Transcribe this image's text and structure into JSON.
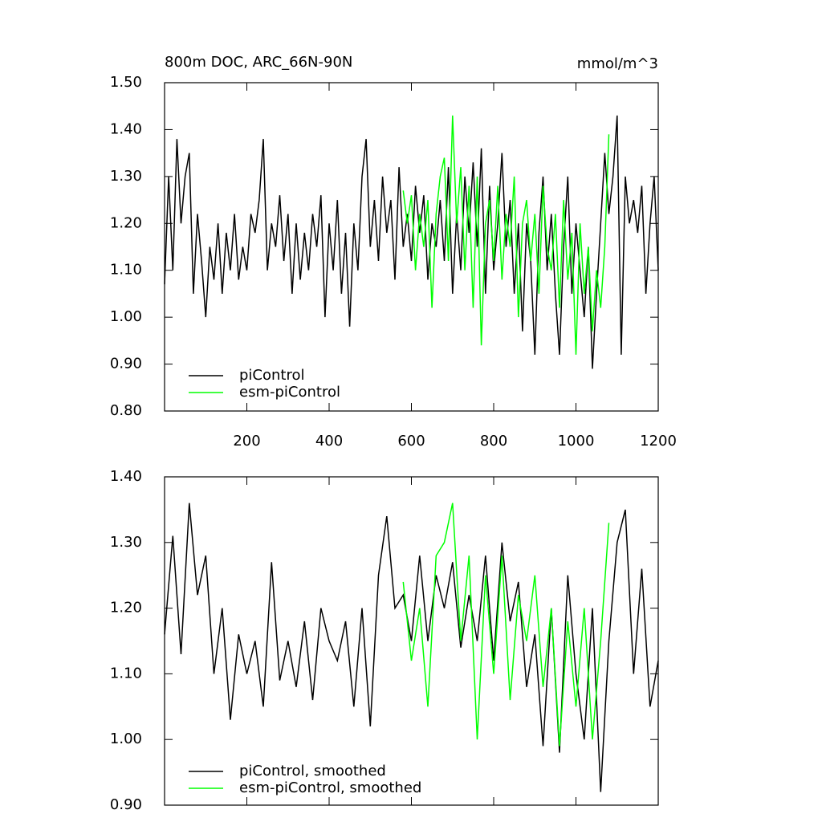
{
  "chart_data": [
    {
      "type": "line",
      "title": "800m DOC, ARC_66N-90N",
      "units": "mmol/m^3",
      "xlim": [
        0,
        1200
      ],
      "xticks": [
        200,
        400,
        600,
        800,
        1000,
        1200
      ],
      "ylim": [
        0.8,
        1.5
      ],
      "yticks": [
        {
          "value": 0.8,
          "label": "0.80"
        },
        {
          "value": 0.9,
          "label": "0.90"
        },
        {
          "value": 1.0,
          "label": "1.00"
        },
        {
          "value": 1.1,
          "label": "1.10"
        },
        {
          "value": 1.2,
          "label": "1.20"
        },
        {
          "value": 1.3,
          "label": "1.30"
        },
        {
          "value": 1.4,
          "label": "1.40"
        },
        {
          "value": 1.5,
          "label": "1.50"
        }
      ],
      "series": [
        {
          "name": "piControl",
          "color": "#000000",
          "x": [
            0,
            10,
            20,
            30,
            40,
            50,
            60,
            70,
            80,
            90,
            100,
            110,
            120,
            130,
            140,
            150,
            160,
            170,
            180,
            190,
            200,
            210,
            220,
            230,
            240,
            250,
            260,
            270,
            280,
            290,
            300,
            310,
            320,
            330,
            340,
            350,
            360,
            370,
            380,
            390,
            400,
            410,
            420,
            430,
            440,
            450,
            460,
            470,
            480,
            490,
            500,
            510,
            520,
            530,
            540,
            550,
            560,
            570,
            580,
            590,
            600,
            610,
            620,
            630,
            640,
            650,
            660,
            670,
            680,
            690,
            700,
            710,
            720,
            730,
            740,
            750,
            760,
            770,
            780,
            790,
            800,
            810,
            820,
            830,
            840,
            850,
            860,
            870,
            880,
            890,
            900,
            910,
            920,
            930,
            940,
            950,
            960,
            970,
            980,
            990,
            1000,
            1010,
            1020,
            1030,
            1040,
            1050,
            1060,
            1070,
            1080,
            1090,
            1100,
            1110,
            1120,
            1130,
            1140,
            1150,
            1160,
            1170,
            1180,
            1190,
            1200
          ],
          "values": [
            1.07,
            1.3,
            1.1,
            1.38,
            1.2,
            1.3,
            1.35,
            1.05,
            1.22,
            1.12,
            1.0,
            1.15,
            1.08,
            1.2,
            1.05,
            1.18,
            1.1,
            1.22,
            1.08,
            1.15,
            1.1,
            1.22,
            1.18,
            1.25,
            1.38,
            1.1,
            1.2,
            1.15,
            1.26,
            1.12,
            1.22,
            1.05,
            1.2,
            1.08,
            1.18,
            1.1,
            1.22,
            1.15,
            1.26,
            1.0,
            1.2,
            1.1,
            1.25,
            1.05,
            1.18,
            0.98,
            1.2,
            1.1,
            1.3,
            1.38,
            1.15,
            1.25,
            1.12,
            1.3,
            1.18,
            1.25,
            1.08,
            1.32,
            1.15,
            1.22,
            1.12,
            1.28,
            1.18,
            1.26,
            1.08,
            1.2,
            1.15,
            1.25,
            1.12,
            1.32,
            1.05,
            1.22,
            1.1,
            1.3,
            1.18,
            1.33,
            1.15,
            1.36,
            1.05,
            1.28,
            1.1,
            1.2,
            1.35,
            1.15,
            1.25,
            1.05,
            1.2,
            0.97,
            1.2,
            1.12,
            0.92,
            1.18,
            1.3,
            1.1,
            1.22,
            1.05,
            0.92,
            1.15,
            1.3,
            1.05,
            1.2,
            1.1,
            1.0,
            1.15,
            0.89,
            1.05,
            1.2,
            1.35,
            1.22,
            1.3,
            1.43,
            0.92,
            1.3,
            1.2,
            1.25,
            1.18,
            1.28,
            1.05,
            1.2,
            1.3,
            1.1
          ]
        },
        {
          "name": "esm-piControl",
          "color": "#00ff00",
          "x": [
            580,
            590,
            600,
            610,
            620,
            630,
            640,
            650,
            660,
            670,
            680,
            690,
            700,
            710,
            720,
            730,
            740,
            750,
            760,
            770,
            780,
            790,
            800,
            810,
            820,
            830,
            840,
            850,
            860,
            870,
            880,
            890,
            900,
            910,
            920,
            930,
            940,
            950,
            960,
            970,
            980,
            990,
            1000,
            1010,
            1020,
            1030,
            1040,
            1050,
            1060,
            1070,
            1080
          ],
          "values": [
            1.27,
            1.2,
            1.26,
            1.1,
            1.22,
            1.15,
            1.25,
            1.02,
            1.22,
            1.3,
            1.34,
            1.12,
            1.43,
            1.2,
            1.32,
            1.1,
            1.28,
            1.02,
            1.3,
            0.94,
            1.2,
            1.25,
            1.12,
            1.28,
            1.08,
            1.22,
            1.15,
            1.3,
            1.0,
            1.2,
            1.25,
            1.12,
            1.22,
            1.05,
            1.28,
            1.15,
            1.1,
            1.22,
            1.02,
            1.25,
            1.08,
            1.18,
            0.92,
            1.2,
            1.05,
            1.15,
            0.97,
            1.1,
            1.02,
            1.15,
            1.39
          ]
        }
      ]
    },
    {
      "type": "line",
      "xlim": [
        0,
        1200
      ],
      "ylim": [
        0.9,
        1.4
      ],
      "yticks": [
        {
          "value": 0.9,
          "label": "0.90"
        },
        {
          "value": 1.0,
          "label": "1.00"
        },
        {
          "value": 1.1,
          "label": "1.10"
        },
        {
          "value": 1.2,
          "label": "1.20"
        },
        {
          "value": 1.3,
          "label": "1.30"
        },
        {
          "value": 1.4,
          "label": "1.40"
        }
      ],
      "series": [
        {
          "name": "piControl, smoothed",
          "color": "#000000",
          "x": [
            0,
            20,
            40,
            60,
            80,
            100,
            120,
            140,
            160,
            180,
            200,
            220,
            240,
            260,
            280,
            300,
            320,
            340,
            360,
            380,
            400,
            420,
            440,
            460,
            480,
            500,
            520,
            540,
            560,
            580,
            600,
            620,
            640,
            660,
            680,
            700,
            720,
            740,
            760,
            780,
            800,
            820,
            840,
            860,
            880,
            900,
            920,
            940,
            960,
            980,
            1000,
            1020,
            1040,
            1060,
            1080,
            1100,
            1120,
            1140,
            1160,
            1180,
            1200
          ],
          "values": [
            1.16,
            1.31,
            1.13,
            1.36,
            1.22,
            1.28,
            1.1,
            1.2,
            1.03,
            1.16,
            1.1,
            1.15,
            1.05,
            1.27,
            1.09,
            1.15,
            1.08,
            1.18,
            1.06,
            1.2,
            1.15,
            1.12,
            1.18,
            1.05,
            1.2,
            1.02,
            1.25,
            1.34,
            1.2,
            1.22,
            1.15,
            1.28,
            1.15,
            1.25,
            1.2,
            1.27,
            1.14,
            1.22,
            1.15,
            1.28,
            1.12,
            1.3,
            1.18,
            1.24,
            1.08,
            1.16,
            0.99,
            1.2,
            0.98,
            1.25,
            1.1,
            1.0,
            1.2,
            0.92,
            1.15,
            1.3,
            1.35,
            1.1,
            1.26,
            1.05,
            1.12
          ]
        },
        {
          "name": "esm-piControl, smoothed",
          "color": "#00ff00",
          "x": [
            580,
            600,
            620,
            640,
            660,
            680,
            700,
            720,
            740,
            760,
            780,
            800,
            820,
            840,
            860,
            880,
            900,
            920,
            940,
            960,
            980,
            1000,
            1020,
            1040,
            1060,
            1080
          ],
          "values": [
            1.24,
            1.12,
            1.2,
            1.05,
            1.28,
            1.3,
            1.36,
            1.15,
            1.28,
            1.0,
            1.25,
            1.1,
            1.28,
            1.06,
            1.22,
            1.15,
            1.25,
            1.08,
            1.2,
            0.99,
            1.18,
            1.05,
            1.2,
            1.0,
            1.15,
            1.33
          ]
        }
      ]
    }
  ]
}
